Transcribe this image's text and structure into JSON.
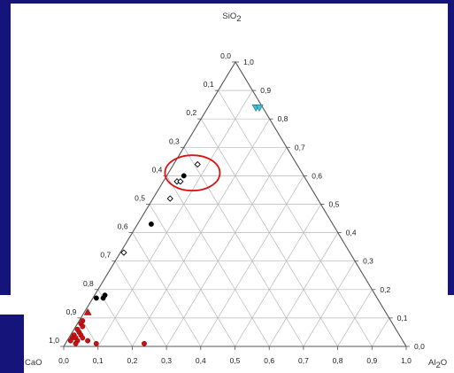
{
  "slide": {
    "frame_color": "#14147a",
    "background": "#ffffff"
  },
  "chart_data": {
    "type": "scatter",
    "subtype": "ternary",
    "title": "",
    "vertices": {
      "top": {
        "main": "SiO",
        "sub": "2"
      },
      "left": {
        "main": "CaO",
        "sub": ""
      },
      "right": {
        "main": "Al",
        "sub": "2",
        "rest": "O"
      }
    },
    "axes": {
      "bottom": {
        "component": "Al2O3",
        "ticks": [
          "0,0",
          "0,1",
          "0,2",
          "0,3",
          "0,4",
          "0,5",
          "0,6",
          "0,7",
          "0,8",
          "0,9",
          "1,0"
        ]
      },
      "left": {
        "component": "CaO",
        "ticks": [
          "0,0",
          "0,1",
          "0,2",
          "0,3",
          "0,4",
          "0,5",
          "0,6",
          "0,7",
          "0,8",
          "0,9",
          "1,0"
        ]
      },
      "right": {
        "component": "SiO2",
        "ticks": [
          "0,0",
          "0,1",
          "0,2",
          "0,3",
          "0,4",
          "0,5",
          "0,6",
          "0,7",
          "0,8",
          "0,9",
          "1,0"
        ]
      }
    },
    "grid": true,
    "grid_step": 0.1,
    "series": [
      {
        "marker": "circle-filled",
        "color": "#000000",
        "points": [
          {
            "SiO2": 0.6,
            "CaO": 0.35,
            "Al2O3": 0.05
          },
          {
            "SiO2": 0.43,
            "CaO": 0.53,
            "Al2O3": 0.04
          },
          {
            "SiO2": 0.17,
            "CaO": 0.8,
            "Al2O3": 0.03
          },
          {
            "SiO2": 0.17,
            "CaO": 0.82,
            "Al2O3": 0.01
          },
          {
            "SiO2": 0.18,
            "CaO": 0.79,
            "Al2O3": 0.03
          }
        ]
      },
      {
        "marker": "diamond-open",
        "color": "#000000",
        "points": [
          {
            "SiO2": 0.64,
            "CaO": 0.29,
            "Al2O3": 0.07
          },
          {
            "SiO2": 0.58,
            "CaO": 0.38,
            "Al2O3": 0.04
          },
          {
            "SiO2": 0.58,
            "CaO": 0.37,
            "Al2O3": 0.05
          },
          {
            "SiO2": 0.52,
            "CaO": 0.43,
            "Al2O3": 0.05
          },
          {
            "SiO2": 0.33,
            "CaO": 0.66,
            "Al2O3": 0.01
          }
        ]
      },
      {
        "marker": "circle-filled",
        "color": "#cc1111",
        "points": [
          {
            "SiO2": 0.09,
            "CaO": 0.9,
            "Al2O3": 0.01
          },
          {
            "SiO2": 0.08,
            "CaO": 0.91,
            "Al2O3": 0.01
          },
          {
            "SiO2": 0.07,
            "CaO": 0.91,
            "Al2O3": 0.02
          },
          {
            "SiO2": 0.06,
            "CaO": 0.93,
            "Al2O3": 0.01
          },
          {
            "SiO2": 0.05,
            "CaO": 0.93,
            "Al2O3": 0.02
          },
          {
            "SiO2": 0.04,
            "CaO": 0.95,
            "Al2O3": 0.01
          },
          {
            "SiO2": 0.04,
            "CaO": 0.93,
            "Al2O3": 0.03
          },
          {
            "SiO2": 0.03,
            "CaO": 0.96,
            "Al2O3": 0.01
          },
          {
            "SiO2": 0.03,
            "CaO": 0.95,
            "Al2O3": 0.02
          },
          {
            "SiO2": 0.03,
            "CaO": 0.93,
            "Al2O3": 0.04
          },
          {
            "SiO2": 0.02,
            "CaO": 0.97,
            "Al2O3": 0.01
          },
          {
            "SiO2": 0.02,
            "CaO": 0.95,
            "Al2O3": 0.03
          },
          {
            "SiO2": 0.01,
            "CaO": 0.96,
            "Al2O3": 0.03
          },
          {
            "SiO2": 0.02,
            "CaO": 0.92,
            "Al2O3": 0.06
          },
          {
            "SiO2": 0.01,
            "CaO": 0.9,
            "Al2O3": 0.09
          },
          {
            "SiO2": 0.01,
            "CaO": 0.76,
            "Al2O3": 0.23
          }
        ]
      },
      {
        "marker": "triangle-filled",
        "color": "#cc1111",
        "points": [
          {
            "SiO2": 0.12,
            "CaO": 0.87,
            "Al2O3": 0.01
          }
        ]
      },
      {
        "marker": "triangle-down-filled",
        "color": "#3fc2d6",
        "points": [
          {
            "SiO2": 0.84,
            "CaO": 0.02,
            "Al2O3": 0.14
          },
          {
            "SiO2": 0.84,
            "CaO": 0.01,
            "Al2O3": 0.15
          }
        ]
      }
    ],
    "annotations": [
      {
        "type": "ellipse",
        "color": "#dd1111",
        "center": {
          "SiO2": 0.61,
          "CaO": 0.32,
          "Al2O3": 0.07
        }
      }
    ]
  }
}
